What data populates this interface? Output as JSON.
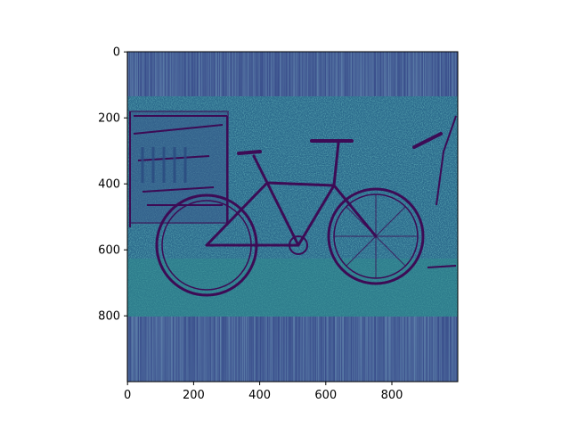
{
  "chart_data": {
    "type": "heatmap",
    "title": "",
    "xlabel": "",
    "ylabel": "",
    "colormap": "viridis",
    "xlim": [
      0,
      1000
    ],
    "ylim": [
      1000,
      0
    ],
    "xticks": [
      0,
      200,
      400,
      600,
      800
    ],
    "yticks": [
      0,
      200,
      400,
      600,
      800
    ],
    "image_content": "edge-filtered photo of a cargo bicycle parked in front of a wooden cart and a hedge",
    "palette": {
      "background": "#2f5f8a",
      "dark": "#44095a",
      "mid": "#31688e",
      "teal": "#23898e",
      "green": "#35b779"
    }
  }
}
